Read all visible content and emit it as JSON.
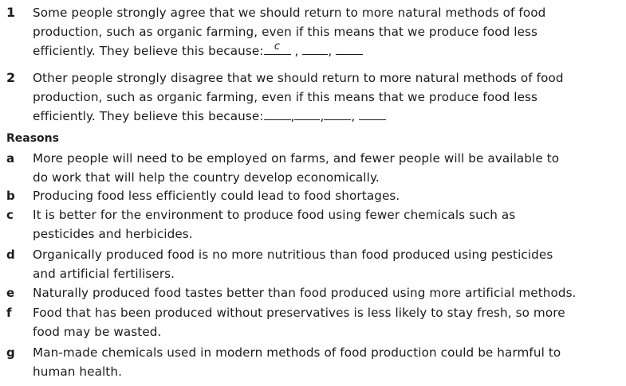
{
  "questions": [
    {
      "number": "1",
      "line1": "Some people strongly agree that we should return to more natural methods of food",
      "line2": "production, such as organic farming, even if this means that we produce food less",
      "line3_prefix": "efficiently. They believe this because:",
      "answers": [
        "c",
        "",
        ""
      ]
    },
    {
      "number": "2",
      "line1": "Other people strongly disagree that we should return to more natural methods of food",
      "line2": "production, such as organic farming, even if this means that we produce food less",
      "line3_prefix": "efficiently. They believe this because:",
      "answers": [
        "",
        "",
        "",
        ""
      ]
    }
  ],
  "reasons_heading": "Reasons",
  "reasons": [
    {
      "letter": "a",
      "lines": [
        "More people will need to be employed on farms, and fewer people will be available to",
        "do work that will help the country develop economically."
      ]
    },
    {
      "letter": "b",
      "lines": [
        "Producing food less efficiently could lead to food shortages."
      ]
    },
    {
      "letter": "c",
      "lines": [
        "It is better for the environment to produce food using fewer chemicals such as",
        "pesticides and herbicides."
      ]
    },
    {
      "letter": "d",
      "lines": [
        "Organically produced food is no more nutritious than food produced using pesticides",
        "and artificial fertilisers."
      ]
    },
    {
      "letter": "e",
      "lines": [
        "Naturally produced food tastes better than food produced using more artificial methods."
      ]
    },
    {
      "letter": "f",
      "lines": [
        "Food that has been produced without preservatives is less likely to stay fresh, so more",
        "food may be wasted."
      ]
    },
    {
      "letter": "g",
      "lines": [
        "Man-made chemicals used in modern methods of food production could be harmful to",
        "human health."
      ]
    }
  ]
}
